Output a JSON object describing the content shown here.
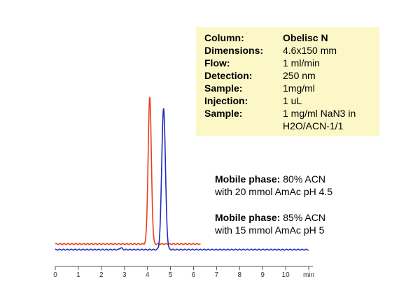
{
  "info": {
    "rows": [
      {
        "key": "Column:",
        "value": "Obelisc N",
        "value_bold": true
      },
      {
        "key": "Dimensions:",
        "value": "4.6x150 mm"
      },
      {
        "key": "Flow:",
        "value": "1 ml/min"
      },
      {
        "key": "Detection:",
        "value": "250 nm"
      },
      {
        "key": "Sample:",
        "value": "1mg/ml"
      },
      {
        "key": "Injection:",
        "value": "1 uL"
      },
      {
        "key": "Sample:",
        "value": "1 mg/ml NaN3 in"
      }
    ],
    "continuation": "H2O/ACN-1/1"
  },
  "notes": [
    {
      "label": "Mobile phase:",
      "text": " 80% ACN",
      "line2": "with 20 mmol AmAc pH 4.5"
    },
    {
      "label": "Mobile phase:",
      "text": " 85% ACN",
      "line2": "with 15 mmol AmAc pH 5"
    }
  ],
  "chart_data": {
    "type": "line",
    "xlabel": "min",
    "xlim": [
      0,
      11
    ],
    "xticks": [
      0,
      1,
      2,
      3,
      4,
      5,
      6,
      7,
      8,
      9,
      10,
      11
    ],
    "xtick_labels": [
      "0",
      "1",
      "2",
      "3",
      "4",
      "5",
      "6",
      "7",
      "8",
      "9",
      "10",
      "min"
    ],
    "series": [
      {
        "color": "#e8401c",
        "x_range": [
          0,
          6.3
        ],
        "baseline": 0.6,
        "peaks": [
          {
            "x": 4.1,
            "height": 15.5,
            "width": 0.07
          }
        ]
      },
      {
        "color": "#1f2dbd",
        "x_range": [
          0,
          11
        ],
        "baseline": 0.0,
        "peaks": [
          {
            "x": 4.7,
            "height": 15.0,
            "width": 0.08
          },
          {
            "x": 2.85,
            "height": 0.2,
            "width": 0.05
          }
        ]
      }
    ]
  }
}
